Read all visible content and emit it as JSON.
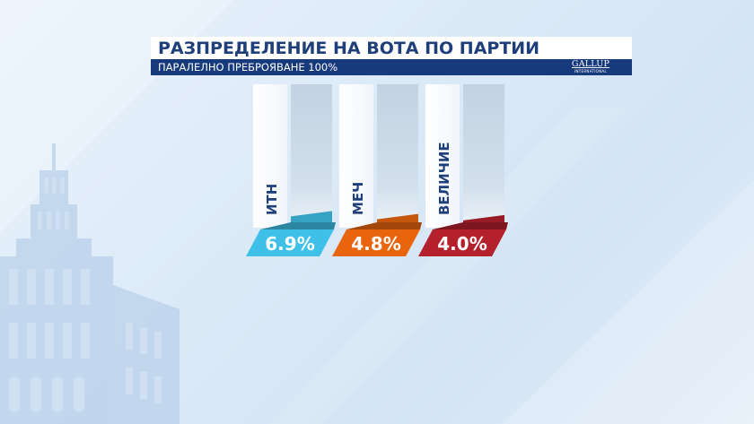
{
  "header": {
    "title": "РАЗПРЕДЕЛЕНИЕ НА ВОТА ПО ПАРТИИ",
    "subtitle": "ПАРАЛЕЛНО ПРЕБРОЯВАНЕ 100%",
    "logo": "GALLUP",
    "logo_sub": "INTERNATIONAL"
  },
  "colors": {
    "title_text": "#1f3f7a",
    "header_bar": "#173a7c",
    "bar_itn": "#3fc0e8",
    "bar_mech": "#e8650e",
    "bar_velichie": "#b4202c"
  },
  "chart_data": {
    "type": "bar",
    "title": "РАЗПРЕДЕЛЕНИЕ НА ВОТА ПО ПАРТИИ",
    "subtitle": "ПАРАЛЕЛНО ПРЕБРОЯВАНЕ 100%",
    "categories": [
      "ИТН",
      "МЕЧ",
      "ВЕЛИЧИЕ"
    ],
    "values": [
      6.9,
      4.8,
      4.0
    ],
    "value_labels": [
      "6.9%",
      "4.8%",
      "4.0%"
    ],
    "unit": "%",
    "ylim": [
      0,
      100
    ],
    "colors": [
      "#3fc0e8",
      "#e8650e",
      "#b4202c"
    ],
    "grid": false,
    "legend": "none"
  }
}
